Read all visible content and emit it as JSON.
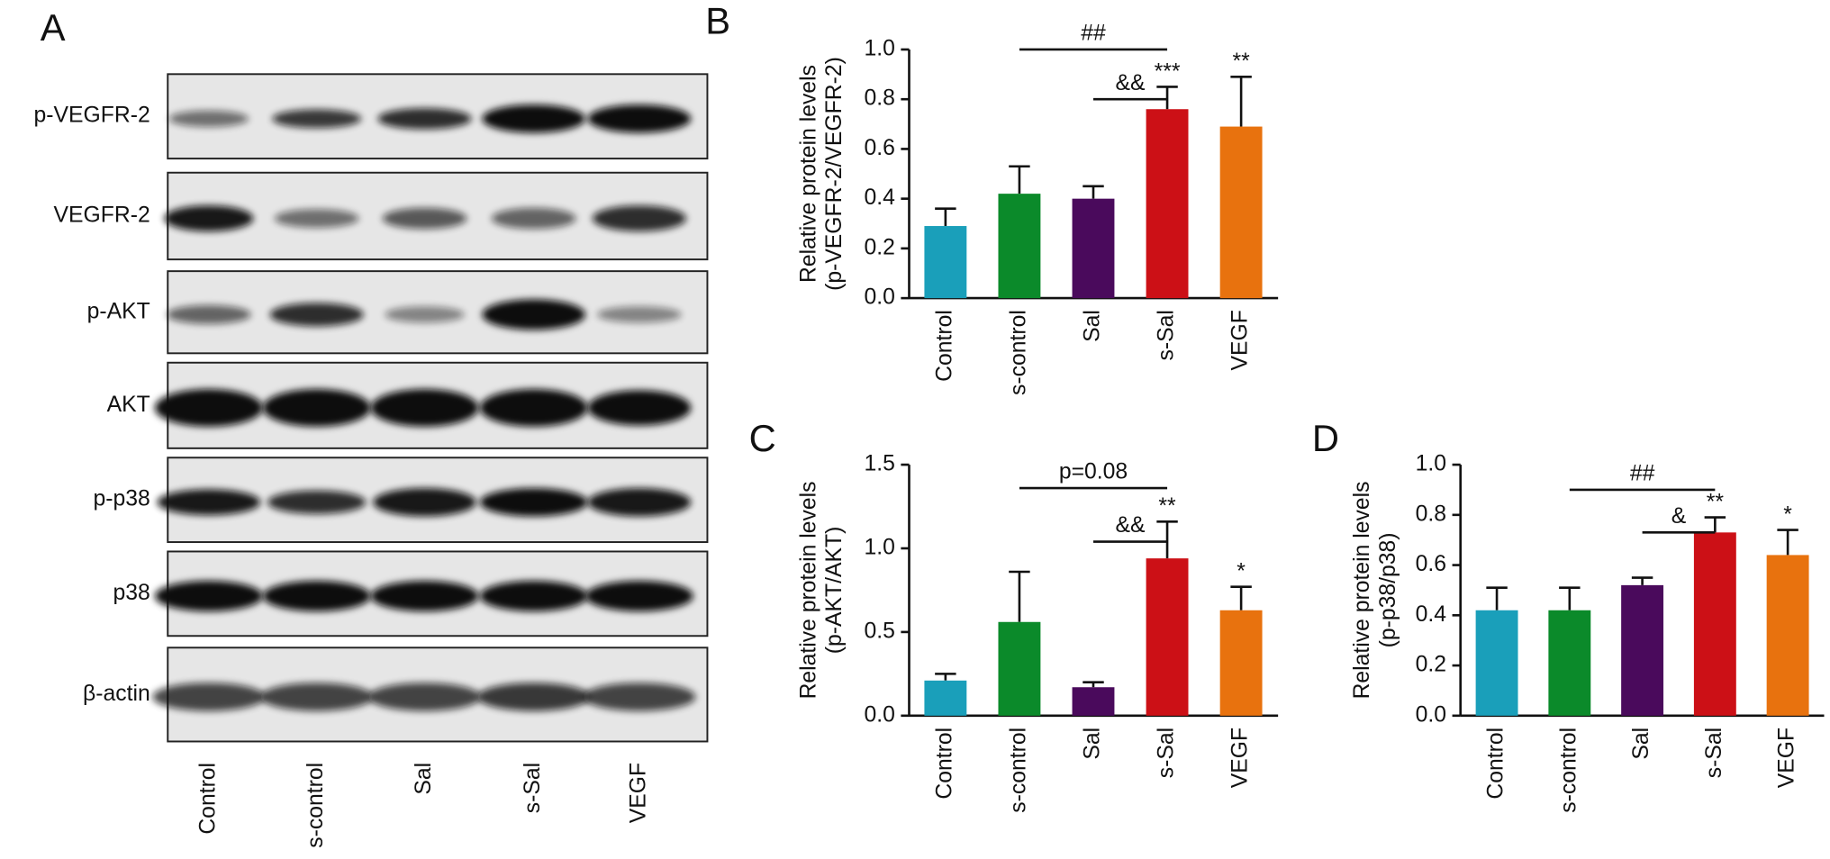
{
  "blot": {
    "label": "A",
    "rows": [
      "p-VEGFR-2",
      "VEGFR-2",
      "p-AKT",
      "AKT",
      "p-p38",
      "p38",
      "β-actin"
    ],
    "lanes": [
      "Control",
      "s-control",
      "Sal",
      "s-Sal",
      "VEGF"
    ]
  },
  "chart_data": [
    {
      "type": "bar",
      "label": "B",
      "ylabel": [
        "Relative protein levels",
        "(p-VEGFR-2/VEGFR-2)"
      ],
      "categories": [
        "Control",
        "s-control",
        "Sal",
        "s-Sal",
        "VEGF"
      ],
      "values": [
        0.29,
        0.42,
        0.4,
        0.76,
        0.69
      ],
      "errors": [
        0.07,
        0.11,
        0.05,
        0.09,
        0.2
      ],
      "colors": [
        "#1a9fba",
        "#0b8a2a",
        "#4a0a5c",
        "#cc1016",
        "#e8720e"
      ],
      "ylim": [
        0,
        1.0
      ],
      "yticks": [
        {
          "value": 0,
          "label": "0.0"
        },
        0.2,
        0.4,
        0.6,
        0.8,
        {
          "value": 1.0,
          "label": "1.0"
        }
      ],
      "brackets": [
        {
          "text": "##",
          "from": 1,
          "to": 3,
          "y": 1.0
        },
        {
          "text": "&&",
          "from": 2,
          "to": 3,
          "y": 0.8
        }
      ],
      "stars": [
        {
          "text": "***",
          "category": 3
        },
        {
          "text": "**",
          "category": 4
        }
      ]
    },
    {
      "type": "bar",
      "label": "C",
      "ylabel": [
        "Relative protein levels",
        "(p-AKT/AKT)"
      ],
      "categories": [
        "Control",
        "s-control",
        "Sal",
        "s-Sal",
        "VEGF"
      ],
      "values": [
        0.21,
        0.56,
        0.17,
        0.94,
        0.63
      ],
      "errors": [
        0.04,
        0.3,
        0.03,
        0.22,
        0.14
      ],
      "colors": [
        "#1a9fba",
        "#0b8a2a",
        "#4a0a5c",
        "#cc1016",
        "#e8720e"
      ],
      "ylim": [
        0,
        1.5
      ],
      "yticks": [
        {
          "value": 0,
          "label": "0.0"
        },
        0.5,
        {
          "value": 1.0,
          "label": "1.0"
        },
        1.5
      ],
      "brackets": [
        {
          "text": "p=0.08",
          "from": 1,
          "to": 3,
          "y": 1.36
        },
        {
          "text": "&&",
          "from": 2,
          "to": 3,
          "y": 1.04
        }
      ],
      "stars": [
        {
          "text": "**",
          "category": 3
        },
        {
          "text": "*",
          "category": 4
        }
      ]
    },
    {
      "type": "bar",
      "label": "D",
      "ylabel": [
        "Relative protein levels",
        "(p-p38/p38)"
      ],
      "categories": [
        "Control",
        "s-control",
        "Sal",
        "s-Sal",
        "VEGF"
      ],
      "values": [
        0.42,
        0.42,
        0.52,
        0.73,
        0.64
      ],
      "errors": [
        0.09,
        0.09,
        0.03,
        0.06,
        0.1
      ],
      "colors": [
        "#1a9fba",
        "#0b8a2a",
        "#4a0a5c",
        "#cc1016",
        "#e8720e"
      ],
      "ylim": [
        0,
        1.0
      ],
      "yticks": [
        {
          "value": 0,
          "label": "0.0"
        },
        0.2,
        0.4,
        0.6,
        0.8,
        {
          "value": 1.0,
          "label": "1.0"
        }
      ],
      "brackets": [
        {
          "text": "##",
          "from": 1,
          "to": 3,
          "y": 0.9
        },
        {
          "text": "&",
          "from": 2,
          "to": 3,
          "y": 0.73
        }
      ],
      "stars": [
        {
          "text": "**",
          "category": 3
        },
        {
          "text": "*",
          "category": 4
        }
      ]
    }
  ]
}
